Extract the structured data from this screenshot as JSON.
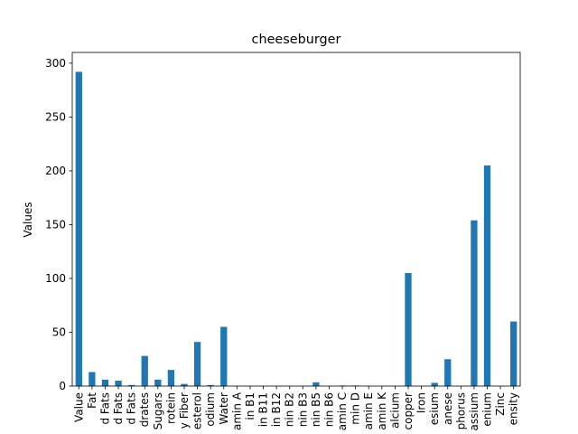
{
  "chart_data": {
    "type": "bar",
    "title": "cheeseburger",
    "xlabel": "",
    "ylabel": "Values",
    "ylim": [
      0,
      310
    ],
    "yticks": [
      0,
      50,
      100,
      150,
      200,
      250,
      300
    ],
    "grid": false,
    "legend": "none",
    "bar_color": "#1f77b4",
    "categories": [
      "Value",
      "Fat",
      "d Fats",
      "d Fats",
      "d Fats",
      "drates",
      "Sugars",
      "rotein",
      "y Fiber",
      "esterol",
      "odium",
      "Water",
      "amin A",
      "in B1",
      "in B11",
      "in B12",
      "nin B2",
      "nin B3",
      "nin B5",
      "nin B6",
      "amin C",
      "min D",
      "amin E",
      "amin K",
      "alcium",
      "copper",
      "Iron",
      "esium",
      "anese",
      "phorus",
      "assium",
      "enium",
      "Zinc",
      "ensity"
    ],
    "values": [
      292,
      13,
      6,
      5,
      1,
      28,
      6,
      15,
      2,
      41,
      1,
      55,
      0,
      0,
      0,
      0,
      0,
      0,
      3.5,
      0,
      0.5,
      0.5,
      0,
      0,
      0,
      105,
      0,
      3,
      25,
      0,
      154,
      205,
      0,
      60
    ]
  }
}
